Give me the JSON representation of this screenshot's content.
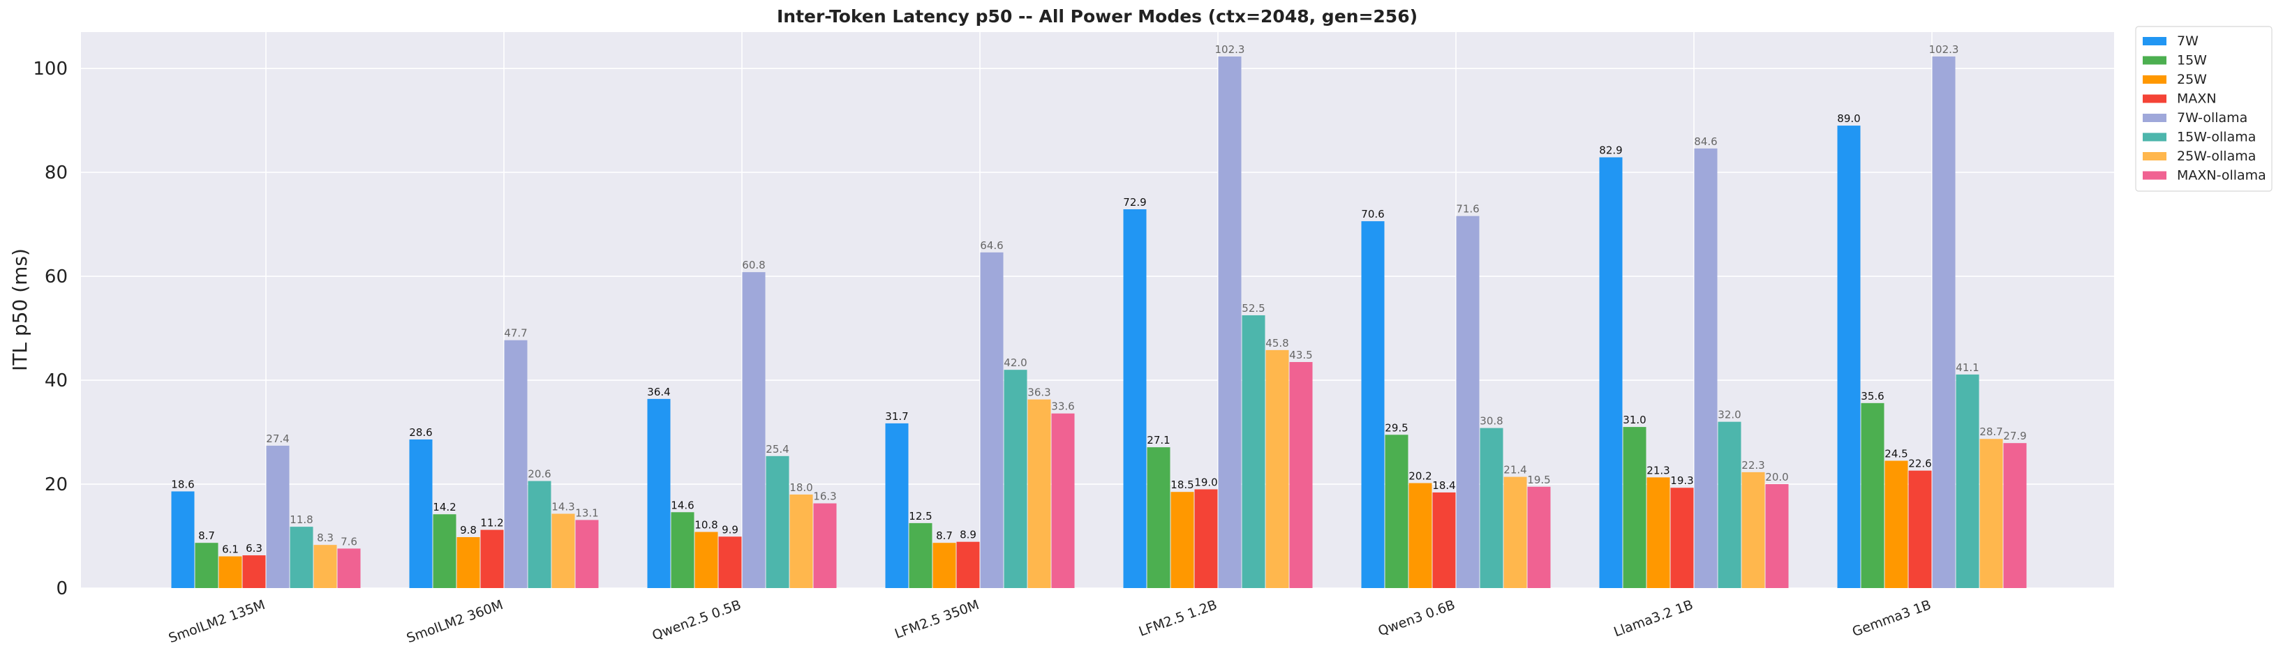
{
  "chart_data": {
    "type": "bar",
    "title": "Inter-Token Latency p50 -- All Power Modes (ctx=2048, gen=256)",
    "xlabel": "",
    "ylabel": "ITL p50 (ms)",
    "ylim": [
      0,
      107
    ],
    "yticks": [
      "0",
      "20",
      "40",
      "60",
      "80",
      "100"
    ],
    "grid": true,
    "legend_position": "upper-right-outside",
    "categories": [
      "SmolLM2 135M",
      "SmolLM2 360M",
      "Qwen2.5 0.5B",
      "LFM2.5 350M",
      "LFM2.5 1.2B",
      "Qwen3 0.6B",
      "Llama3.2 1B",
      "Gemma3 1B"
    ],
    "series": [
      {
        "name": "7W",
        "color": "#2196F3",
        "values": [
          18.6,
          28.6,
          36.4,
          31.7,
          72.9,
          70.6,
          82.9,
          89.0
        ],
        "labels": [
          "18.6",
          "28.6",
          "36.4",
          "31.7",
          "72.9",
          "70.6",
          "82.9",
          "89.0"
        ]
      },
      {
        "name": "15W",
        "color": "#4CAF50",
        "values": [
          8.7,
          14.2,
          14.6,
          12.5,
          27.1,
          29.5,
          31.0,
          35.6
        ],
        "labels": [
          "8.7",
          "14.2",
          "14.6",
          "12.5",
          "27.1",
          "29.5",
          "31.0",
          "35.6"
        ]
      },
      {
        "name": "25W",
        "color": "#FF9800",
        "values": [
          6.1,
          9.8,
          10.8,
          8.7,
          18.5,
          20.2,
          21.3,
          24.5
        ],
        "labels": [
          "6.1",
          "9.8",
          "10.8",
          "8.7",
          "18.5",
          "20.2",
          "21.3",
          "24.5"
        ]
      },
      {
        "name": "MAXN",
        "color": "#F44336",
        "values": [
          6.3,
          11.2,
          9.9,
          8.9,
          19.0,
          18.4,
          19.3,
          22.6
        ],
        "labels": [
          "6.3",
          "11.2",
          "9.9",
          "8.9",
          "19.0",
          "18.4",
          "19.3",
          "22.6"
        ]
      },
      {
        "name": "7W-ollama",
        "color": "#9FA8DA",
        "values": [
          27.4,
          47.7,
          60.8,
          64.6,
          102.3,
          71.6,
          84.6,
          102.3
        ],
        "labels": [
          "27.4",
          "47.7",
          "60.8",
          "64.6",
          "102.3",
          "71.6",
          "84.6",
          "102.3"
        ]
      },
      {
        "name": "15W-ollama",
        "color": "#4DB6AC",
        "values": [
          11.8,
          20.6,
          25.4,
          42.0,
          52.5,
          30.8,
          32.0,
          41.1
        ],
        "labels": [
          "11.8",
          "20.6",
          "25.4",
          "42.0",
          "52.5",
          "30.8",
          "32.0",
          "41.1"
        ]
      },
      {
        "name": "25W-ollama",
        "color": "#FFB74D",
        "values": [
          8.3,
          14.3,
          18.0,
          36.3,
          45.8,
          21.4,
          22.3,
          28.7
        ],
        "labels": [
          "8.3",
          "14.3",
          "18.0",
          "36.3",
          "45.8",
          "21.4",
          "22.3",
          "28.7"
        ]
      },
      {
        "name": "MAXN-ollama",
        "color": "#F06292",
        "values": [
          7.6,
          13.1,
          16.3,
          33.6,
          43.5,
          19.5,
          20.0,
          27.9
        ],
        "labels": [
          "7.6",
          "13.1",
          "16.3",
          "33.6",
          "43.5",
          "19.5",
          "20.0",
          "27.9"
        ]
      }
    ]
  }
}
